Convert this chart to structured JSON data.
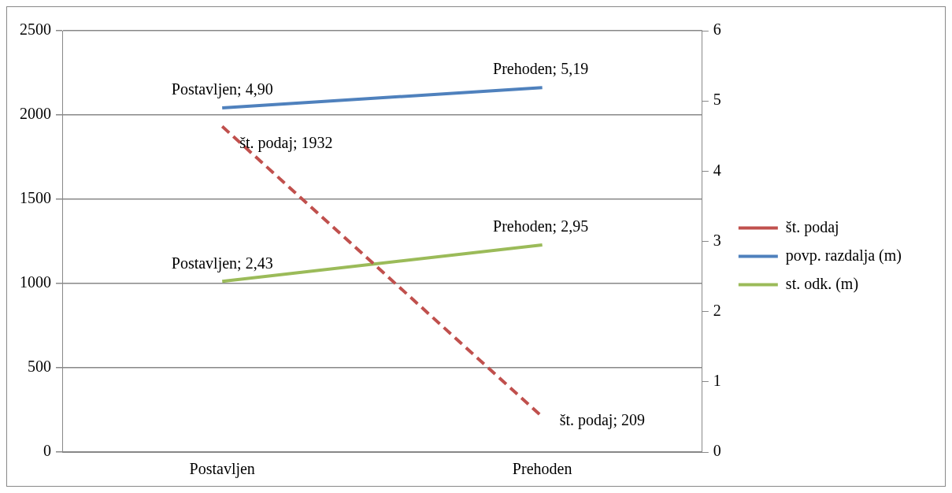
{
  "chart_data": {
    "type": "line",
    "categories": [
      "Postavljen",
      "Prehoden"
    ],
    "series": [
      {
        "name": "št. podaj",
        "color": "#c0504d",
        "values": [
          1932,
          209
        ],
        "line_style": "dashed",
        "value_labels": [
          "št. podaj; 1932",
          "št. podaj; 209"
        ]
      },
      {
        "name": "povp. razdalja (m)",
        "color": "#4f81bd",
        "values": [
          4.9,
          5.19
        ],
        "axis": "y2",
        "value_labels": [
          "Postavljen; 4,90",
          "Prehoden; 5,19"
        ]
      },
      {
        "name": "st. odk. (m)",
        "color": "#9bbb59",
        "values": [
          2.43,
          2.95
        ],
        "axis": "y2",
        "value_labels": [
          "Postavljen; 2,43",
          "Prehoden; 2,95"
        ]
      }
    ],
    "ylim": [
      0,
      2500
    ],
    "yticks": [
      0,
      500,
      1000,
      1500,
      2000,
      2500
    ],
    "y2lim": [
      0,
      6
    ],
    "y2ticks": [
      0,
      1,
      2,
      3,
      4,
      5,
      6
    ],
    "grid": "y",
    "legend": "right",
    "marker": "none"
  }
}
